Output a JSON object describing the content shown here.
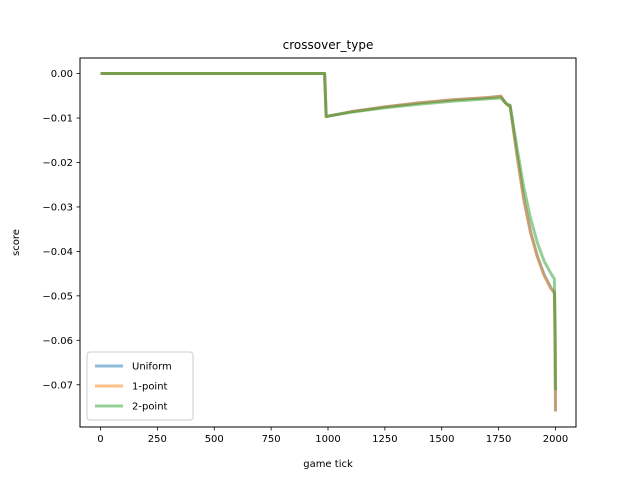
{
  "chart_data": {
    "type": "line",
    "title": "crossover_type",
    "xlabel": "game tick",
    "ylabel": "score",
    "xlim": [
      -90,
      2090
    ],
    "ylim": [
      -0.0795,
      0.0035
    ],
    "xticks": [
      0,
      250,
      500,
      750,
      1000,
      1250,
      1500,
      1750,
      2000
    ],
    "xtick_labels": [
      "0",
      "250",
      "500",
      "750",
      "1000",
      "1250",
      "1500",
      "1750",
      "2000"
    ],
    "yticks": [
      0.0,
      -0.01,
      -0.02,
      -0.03,
      -0.04,
      -0.05,
      -0.06,
      -0.07
    ],
    "ytick_labels": [
      "0.00",
      "−0.01",
      "−0.02",
      "−0.03",
      "−0.04",
      "−0.05",
      "−0.06",
      "−0.07"
    ],
    "grid": false,
    "legend_position": "lower-left",
    "series": [
      {
        "name": "Uniform",
        "color": "#1f77b4",
        "x": [
          0,
          985,
          992,
          1100,
          1250,
          1400,
          1550,
          1700,
          1760,
          1780,
          1792,
          1800,
          1830,
          1860,
          1890,
          1920,
          1950,
          1980,
          1995,
          1998,
          2000
        ],
        "y": [
          0.0,
          0.0,
          -0.0097,
          -0.0086,
          -0.0075,
          -0.0066,
          -0.0059,
          -0.0054,
          -0.0051,
          -0.0066,
          -0.0072,
          -0.0072,
          -0.018,
          -0.028,
          -0.0355,
          -0.041,
          -0.0452,
          -0.0482,
          -0.0492,
          -0.06,
          -0.076
        ]
      },
      {
        "name": "1-point",
        "color": "#ff7f0e",
        "x": [
          0,
          985,
          992,
          1100,
          1250,
          1400,
          1550,
          1700,
          1760,
          1780,
          1792,
          1800,
          1830,
          1860,
          1890,
          1920,
          1950,
          1980,
          1995,
          1998,
          2000
        ],
        "y": [
          0.0,
          0.0,
          -0.0097,
          -0.0086,
          -0.0075,
          -0.0066,
          -0.0059,
          -0.0054,
          -0.0051,
          -0.0066,
          -0.0072,
          -0.0072,
          -0.0182,
          -0.0283,
          -0.0358,
          -0.0413,
          -0.0455,
          -0.0484,
          -0.0494,
          -0.06,
          -0.076
        ]
      },
      {
        "name": "2-point",
        "color": "#2ca02c",
        "x": [
          0,
          985,
          992,
          1100,
          1250,
          1400,
          1550,
          1700,
          1760,
          1780,
          1792,
          1800,
          1830,
          1860,
          1890,
          1920,
          1950,
          1980,
          1995,
          1998,
          2000
        ],
        "y": [
          0.0,
          0.0,
          -0.0096,
          -0.0087,
          -0.0077,
          -0.0069,
          -0.0062,
          -0.0057,
          -0.0055,
          -0.0066,
          -0.007,
          -0.0071,
          -0.0165,
          -0.0255,
          -0.0325,
          -0.038,
          -0.0422,
          -0.045,
          -0.0462,
          -0.056,
          -0.0712
        ]
      }
    ]
  }
}
